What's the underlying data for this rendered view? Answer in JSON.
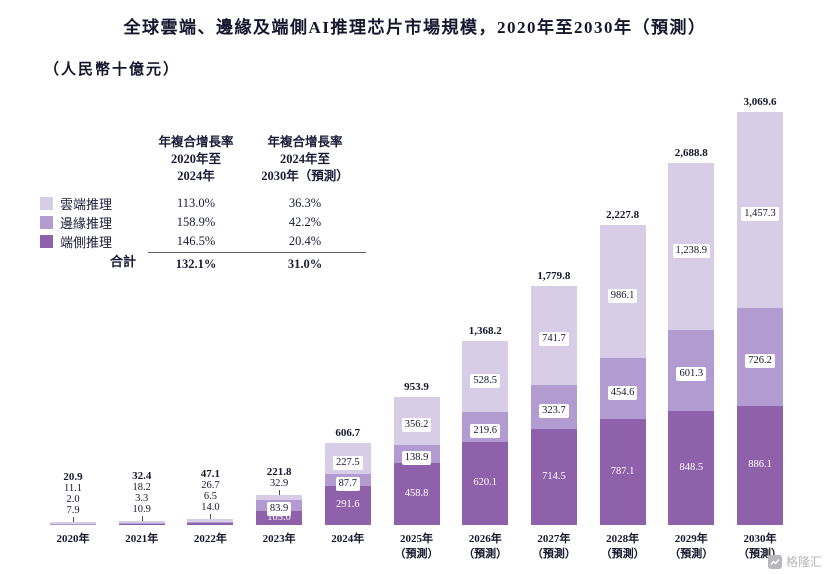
{
  "title": "全球雲端、邊緣及端側AI推理芯片市場規模，2020年至2030年（預測）",
  "subtitle": "（人民幣十億元）",
  "legend": {
    "items": [
      {
        "label": "雲端推理",
        "color": "#d8cde6"
      },
      {
        "label": "邊緣推理",
        "color": "#b19bd0"
      },
      {
        "label": "端側推理",
        "color": "#8f61ab"
      }
    ],
    "total_label": "合計"
  },
  "cagr": {
    "col1_header": [
      "年複合增長率",
      "2020年至",
      "2024年"
    ],
    "col2_header": [
      "年複合增長率",
      "2024年至",
      "2030年（預測）"
    ],
    "rows": [
      {
        "col1": "113.0%",
        "col2": "36.3%"
      },
      {
        "col1": "158.9%",
        "col2": "42.2%"
      },
      {
        "col1": "146.5%",
        "col2": "20.4%"
      }
    ],
    "total_row": {
      "col1": "132.1%",
      "col2": "31.0%"
    }
  },
  "watermark": "格隆汇",
  "chart_data": {
    "type": "bar",
    "stacked": true,
    "title": "全球雲端、邊緣及端側AI推理芯片市場規模，2020年至2030年（預測）",
    "ylabel": "人民幣十億元",
    "legend_position": "left",
    "grid": false,
    "categories": [
      "2020年",
      "2021年",
      "2022年",
      "2023年",
      "2024年",
      "2025年（預測）",
      "2026年（預測）",
      "2027年（預測）",
      "2028年（預測）",
      "2029年（預測）",
      "2030年（預測）"
    ],
    "series": [
      {
        "name": "端側推理",
        "color": "#8f61ab",
        "values": [
          7.9,
          10.9,
          14.0,
          105.0,
          291.6,
          458.8,
          620.1,
          714.5,
          787.1,
          848.5,
          886.1
        ]
      },
      {
        "name": "邊緣推理",
        "color": "#b19bd0",
        "values": [
          2.0,
          3.3,
          6.5,
          83.9,
          87.7,
          138.9,
          219.6,
          323.7,
          454.6,
          601.3,
          726.2
        ]
      },
      {
        "name": "雲端推理",
        "color": "#d8cde6",
        "values": [
          11.1,
          18.2,
          26.7,
          32.9,
          227.5,
          356.2,
          528.5,
          741.7,
          986.1,
          1238.9,
          1457.3
        ]
      }
    ],
    "totals": [
      20.9,
      32.4,
      47.1,
      221.8,
      606.7,
      953.9,
      1368.2,
      1779.8,
      2227.8,
      2688.8,
      3069.6
    ],
    "years": [
      {
        "label": "2020年",
        "sublabel": "",
        "total": "20.9",
        "cloud": "11.1",
        "edge": "2.0",
        "device": "7.9",
        "total_v": 20.9,
        "cloud_v": 11.1,
        "edge_v": 2.0,
        "device_v": 7.9
      },
      {
        "label": "2021年",
        "sublabel": "",
        "total": "32.4",
        "cloud": "18.2",
        "edge": "3.3",
        "device": "10.9",
        "total_v": 32.4,
        "cloud_v": 18.2,
        "edge_v": 3.3,
        "device_v": 10.9
      },
      {
        "label": "2022年",
        "sublabel": "",
        "total": "47.1",
        "cloud": "26.7",
        "edge": "6.5",
        "device": "14.0",
        "total_v": 47.1,
        "cloud_v": 26.7,
        "edge_v": 6.5,
        "device_v": 14.0
      },
      {
        "label": "2023年",
        "sublabel": "",
        "total": "221.8",
        "cloud": "32.9",
        "edge": "83.9",
        "device": "105.0",
        "total_v": 221.8,
        "cloud_v": 32.9,
        "edge_v": 83.9,
        "device_v": 105.0
      },
      {
        "label": "2024年",
        "sublabel": "",
        "total": "606.7",
        "cloud": "227.5",
        "edge": "87.7",
        "device": "291.6",
        "total_v": 606.7,
        "cloud_v": 227.5,
        "edge_v": 87.7,
        "device_v": 291.6
      },
      {
        "label": "2025年",
        "sublabel": "（預測）",
        "total": "953.9",
        "cloud": "356.2",
        "edge": "138.9",
        "device": "458.8",
        "total_v": 953.9,
        "cloud_v": 356.2,
        "edge_v": 138.9,
        "device_v": 458.8
      },
      {
        "label": "2026年",
        "sublabel": "（預測）",
        "total": "1,368.2",
        "cloud": "528.5",
        "edge": "219.6",
        "device": "620.1",
        "total_v": 1368.2,
        "cloud_v": 528.5,
        "edge_v": 219.6,
        "device_v": 620.1
      },
      {
        "label": "2027年",
        "sublabel": "（預測）",
        "total": "1,779.8",
        "cloud": "741.7",
        "edge": "323.7",
        "device": "714.5",
        "total_v": 1779.8,
        "cloud_v": 741.7,
        "edge_v": 323.7,
        "device_v": 714.5
      },
      {
        "label": "2028年",
        "sublabel": "（預測）",
        "total": "2,227.8",
        "cloud": "986.1",
        "edge": "454.6",
        "device": "787.1",
        "total_v": 2227.8,
        "cloud_v": 986.1,
        "edge_v": 454.6,
        "device_v": 787.1
      },
      {
        "label": "2029年",
        "sublabel": "（預測）",
        "total": "2,688.8",
        "cloud": "1,238.9",
        "edge": "601.3",
        "device": "848.5",
        "total_v": 2688.8,
        "cloud_v": 1238.9,
        "edge_v": 601.3,
        "device_v": 848.5
      },
      {
        "label": "2030年",
        "sublabel": "（預測）",
        "total": "3,069.6",
        "cloud": "1,457.3",
        "edge": "726.2",
        "device": "886.1",
        "total_v": 3069.6,
        "cloud_v": 1457.3,
        "edge_v": 726.2,
        "device_v": 886.1
      }
    ]
  }
}
